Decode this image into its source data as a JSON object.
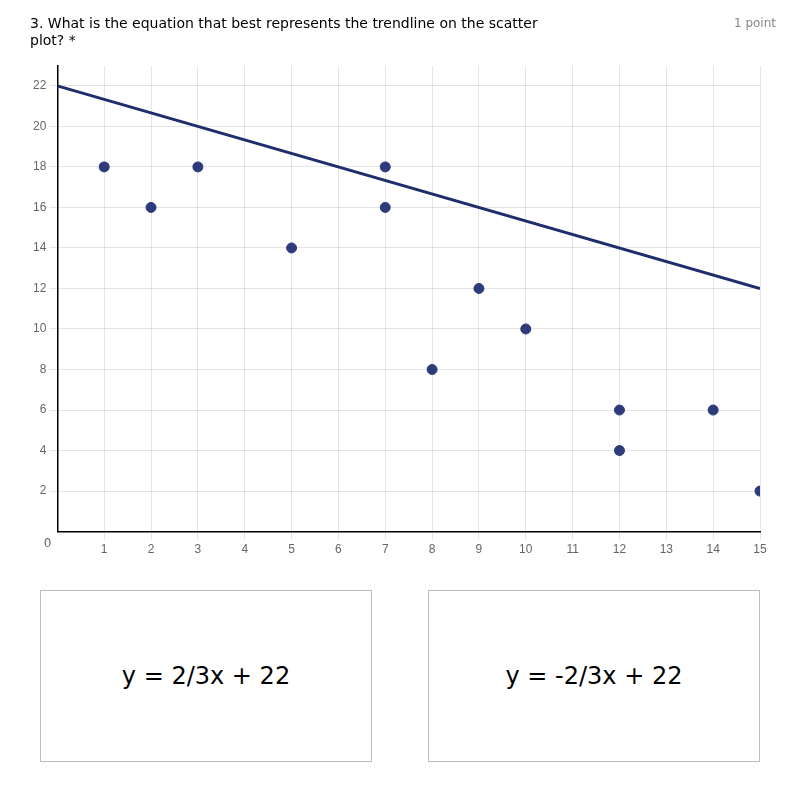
{
  "chart_data": {
    "type": "scatter",
    "title": [
      "3. What is the equation that best represents the trendline on the scatter",
      "plot? *"
    ],
    "series": [
      {
        "type": "scatter",
        "color": "#2d3b7a",
        "x": [
          1,
          2,
          3,
          5,
          7,
          7,
          8,
          9,
          10,
          12,
          12,
          14,
          15
        ],
        "values": [
          18,
          16,
          18,
          14,
          18,
          16,
          8,
          12,
          10,
          6,
          4,
          6,
          2
        ]
      },
      {
        "type": "line",
        "color": "#1e2d6b",
        "x": [
          0,
          15
        ],
        "values": [
          22,
          11.9995
        ]
      }
    ],
    "xlim": [
      0,
      15
    ],
    "ylim": [
      0,
      23
    ],
    "xticks": [
      1,
      2,
      3,
      4,
      5,
      6,
      7,
      8,
      9,
      10,
      11,
      12,
      13,
      14,
      15
    ],
    "yticks": [
      2,
      4,
      6,
      8,
      10,
      12,
      14,
      16,
      18,
      20,
      22
    ],
    "grid": true,
    "annotations": [
      "1 point",
      "0",
      "y = 2/3x + 22",
      "y = -2/3x + 22"
    ]
  }
}
